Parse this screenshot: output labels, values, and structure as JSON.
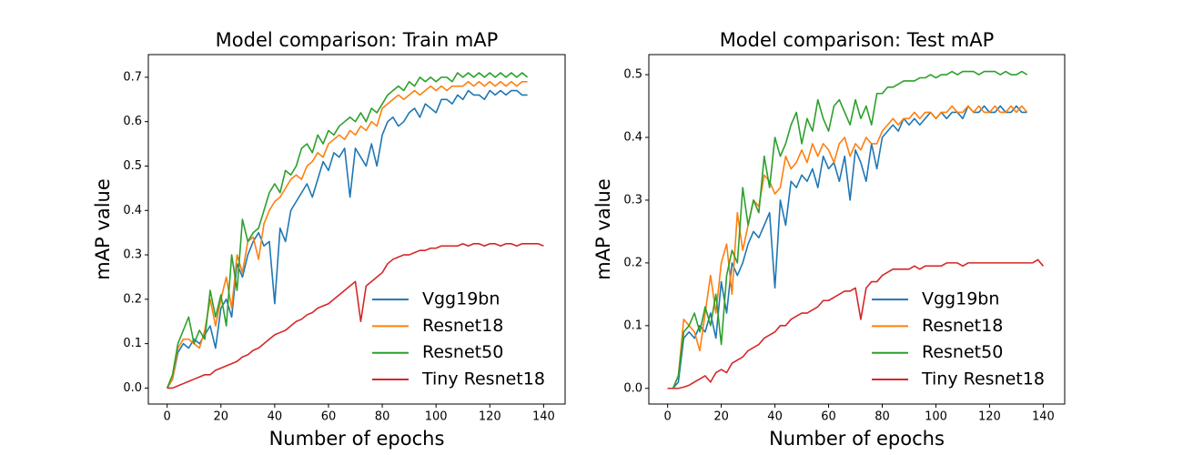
{
  "chart_data": [
    {
      "type": "line",
      "title": "Model comparison: Train mAP",
      "x_label": "Number of epochs",
      "y_label": "mAP value",
      "legend": "lower right",
      "x": [
        0,
        2,
        4,
        6,
        8,
        10,
        12,
        14,
        16,
        18,
        20,
        22,
        24,
        26,
        28,
        30,
        32,
        34,
        36,
        38,
        40,
        42,
        44,
        46,
        48,
        50,
        52,
        54,
        56,
        58,
        60,
        62,
        64,
        66,
        68,
        70,
        72,
        74,
        76,
        78,
        80,
        82,
        84,
        86,
        88,
        90,
        92,
        94,
        96,
        98,
        100,
        102,
        104,
        106,
        108,
        110,
        112,
        114,
        116,
        118,
        120,
        122,
        124,
        126,
        128,
        130,
        132,
        134,
        136,
        138,
        140
      ],
      "xlim": [
        -7,
        148
      ],
      "xticks": [
        0,
        20,
        40,
        60,
        80,
        100,
        120,
        140
      ],
      "ylim": [
        -0.036,
        0.751
      ],
      "yticks": [
        {
          "value": 0,
          "label": "0.0"
        },
        0.1,
        0.2,
        0.3,
        0.4,
        0.5,
        0.6,
        0.7
      ],
      "series": [
        {
          "name": "Vgg19bn",
          "color": "#1f77b4",
          "values": [
            0,
            0.02,
            0.08,
            0.1,
            0.09,
            0.11,
            0.1,
            0.12,
            0.14,
            0.09,
            0.18,
            0.2,
            0.16,
            0.28,
            0.25,
            0.3,
            0.33,
            0.35,
            0.32,
            0.33,
            0.19,
            0.36,
            0.33,
            0.4,
            0.42,
            0.44,
            0.46,
            0.43,
            0.47,
            0.51,
            0.49,
            0.53,
            0.52,
            0.54,
            0.43,
            0.54,
            0.52,
            0.5,
            0.55,
            0.5,
            0.57,
            0.6,
            0.61,
            0.59,
            0.6,
            0.62,
            0.63,
            0.61,
            0.64,
            0.63,
            0.62,
            0.65,
            0.65,
            0.64,
            0.66,
            0.65,
            0.67,
            0.66,
            0.66,
            0.65,
            0.67,
            0.66,
            0.67,
            0.66,
            0.67,
            0.67,
            0.66,
            0.66,
            null,
            null,
            null
          ]
        },
        {
          "name": "Resnet18",
          "color": "#ff7f0e",
          "values": [
            0,
            0.02,
            0.09,
            0.11,
            0.11,
            0.1,
            0.09,
            0.13,
            0.2,
            0.14,
            0.2,
            0.25,
            0.18,
            0.3,
            0.26,
            0.33,
            0.34,
            0.29,
            0.37,
            0.4,
            0.42,
            0.43,
            0.45,
            0.47,
            0.48,
            0.47,
            0.5,
            0.51,
            0.53,
            0.52,
            0.55,
            0.56,
            0.57,
            0.56,
            0.58,
            0.57,
            0.59,
            0.58,
            0.6,
            0.59,
            0.63,
            0.64,
            0.65,
            0.66,
            0.65,
            0.66,
            0.67,
            0.66,
            0.67,
            0.68,
            0.67,
            0.68,
            0.67,
            0.68,
            0.68,
            0.68,
            0.69,
            0.68,
            0.69,
            0.68,
            0.69,
            0.68,
            0.69,
            0.68,
            0.69,
            0.68,
            0.69,
            0.69,
            null,
            null,
            null
          ]
        },
        {
          "name": "Resnet50",
          "color": "#2ca02c",
          "values": [
            0,
            0.03,
            0.1,
            0.13,
            0.16,
            0.1,
            0.13,
            0.11,
            0.22,
            0.16,
            0.21,
            0.14,
            0.3,
            0.22,
            0.38,
            0.33,
            0.35,
            0.36,
            0.4,
            0.44,
            0.46,
            0.44,
            0.49,
            0.48,
            0.5,
            0.54,
            0.55,
            0.53,
            0.57,
            0.55,
            0.58,
            0.57,
            0.59,
            0.6,
            0.61,
            0.6,
            0.62,
            0.6,
            0.63,
            0.62,
            0.64,
            0.66,
            0.67,
            0.68,
            0.67,
            0.69,
            0.68,
            0.7,
            0.69,
            0.7,
            0.69,
            0.7,
            0.7,
            0.69,
            0.71,
            0.7,
            0.71,
            0.7,
            0.71,
            0.7,
            0.71,
            0.7,
            0.71,
            0.7,
            0.71,
            0.7,
            0.71,
            0.7,
            null,
            null,
            null
          ]
        },
        {
          "name": "Tiny Resnet18",
          "color": "#d62728",
          "values": [
            0,
            0,
            0.005,
            0.01,
            0.015,
            0.02,
            0.025,
            0.03,
            0.03,
            0.04,
            0.045,
            0.05,
            0.055,
            0.06,
            0.07,
            0.075,
            0.085,
            0.09,
            0.1,
            0.11,
            0.12,
            0.125,
            0.13,
            0.14,
            0.15,
            0.155,
            0.165,
            0.17,
            0.18,
            0.185,
            0.19,
            0.2,
            0.21,
            0.22,
            0.23,
            0.24,
            0.15,
            0.23,
            0.24,
            0.25,
            0.26,
            0.28,
            0.29,
            0.295,
            0.3,
            0.3,
            0.305,
            0.31,
            0.31,
            0.315,
            0.315,
            0.32,
            0.32,
            0.32,
            0.32,
            0.325,
            0.32,
            0.325,
            0.325,
            0.32,
            0.325,
            0.325,
            0.32,
            0.325,
            0.325,
            0.32,
            0.325,
            0.325,
            0.325,
            0.325,
            0.32
          ]
        }
      ]
    },
    {
      "type": "line",
      "title": "Model comparison: Test mAP",
      "x_label": "Number of epochs",
      "y_label": "mAP value",
      "legend": "lower right",
      "x": [
        0,
        2,
        4,
        6,
        8,
        10,
        12,
        14,
        16,
        18,
        20,
        22,
        24,
        26,
        28,
        30,
        32,
        34,
        36,
        38,
        40,
        42,
        44,
        46,
        48,
        50,
        52,
        54,
        56,
        58,
        60,
        62,
        64,
        66,
        68,
        70,
        72,
        74,
        76,
        78,
        80,
        82,
        84,
        86,
        88,
        90,
        92,
        94,
        96,
        98,
        100,
        102,
        104,
        106,
        108,
        110,
        112,
        114,
        116,
        118,
        120,
        122,
        124,
        126,
        128,
        130,
        132,
        134,
        136,
        138,
        140
      ],
      "xlim": [
        -7,
        148
      ],
      "xticks": [
        0,
        20,
        40,
        60,
        80,
        100,
        120,
        140
      ],
      "ylim": [
        -0.025,
        0.532
      ],
      "yticks": [
        {
          "value": 0,
          "label": "0.0"
        },
        0.1,
        0.2,
        0.3,
        0.4,
        0.5
      ],
      "series": [
        {
          "name": "Vgg19bn",
          "color": "#1f77b4",
          "values": [
            0,
            0,
            0.01,
            0.08,
            0.09,
            0.08,
            0.1,
            0.09,
            0.12,
            0.08,
            0.17,
            0.12,
            0.2,
            0.18,
            0.2,
            0.23,
            0.25,
            0.24,
            0.26,
            0.28,
            0.16,
            0.3,
            0.26,
            0.33,
            0.32,
            0.34,
            0.33,
            0.35,
            0.32,
            0.37,
            0.35,
            0.36,
            0.33,
            0.37,
            0.3,
            0.38,
            0.36,
            0.33,
            0.39,
            0.35,
            0.4,
            0.41,
            0.42,
            0.41,
            0.43,
            0.42,
            0.43,
            0.42,
            0.43,
            0.44,
            0.43,
            0.44,
            0.43,
            0.44,
            0.44,
            0.43,
            0.45,
            0.44,
            0.44,
            0.45,
            0.44,
            0.44,
            0.45,
            0.44,
            0.44,
            0.45,
            0.44,
            0.44,
            null,
            null,
            null
          ]
        },
        {
          "name": "Resnet18",
          "color": "#ff7f0e",
          "values": [
            0,
            0,
            0.02,
            0.11,
            0.1,
            0.09,
            0.06,
            0.12,
            0.18,
            0.12,
            0.2,
            0.23,
            0.15,
            0.28,
            0.22,
            0.26,
            0.3,
            0.29,
            0.34,
            0.33,
            0.31,
            0.32,
            0.37,
            0.35,
            0.36,
            0.38,
            0.36,
            0.39,
            0.37,
            0.39,
            0.38,
            0.36,
            0.39,
            0.4,
            0.37,
            0.39,
            0.38,
            0.4,
            0.39,
            0.39,
            0.41,
            0.42,
            0.43,
            0.42,
            0.43,
            0.43,
            0.44,
            0.43,
            0.44,
            0.44,
            0.43,
            0.44,
            0.44,
            0.45,
            0.44,
            0.44,
            0.45,
            0.44,
            0.45,
            0.44,
            0.44,
            0.45,
            0.44,
            0.44,
            0.45,
            0.44,
            0.45,
            0.44,
            null,
            null,
            null
          ]
        },
        {
          "name": "Resnet50",
          "color": "#2ca02c",
          "values": [
            0,
            0,
            0.02,
            0.09,
            0.1,
            0.12,
            0.09,
            0.13,
            0.1,
            0.15,
            0.07,
            0.18,
            0.22,
            0.2,
            0.32,
            0.26,
            0.3,
            0.28,
            0.37,
            0.32,
            0.4,
            0.37,
            0.39,
            0.42,
            0.44,
            0.39,
            0.43,
            0.41,
            0.46,
            0.43,
            0.41,
            0.45,
            0.46,
            0.44,
            0.42,
            0.46,
            0.43,
            0.45,
            0.42,
            0.47,
            0.47,
            0.48,
            0.48,
            0.485,
            0.49,
            0.49,
            0.49,
            0.495,
            0.495,
            0.5,
            0.495,
            0.5,
            0.5,
            0.505,
            0.5,
            0.505,
            0.505,
            0.505,
            0.5,
            0.505,
            0.505,
            0.505,
            0.5,
            0.505,
            0.5,
            0.5,
            0.505,
            0.5,
            null,
            null,
            null
          ]
        },
        {
          "name": "Tiny Resnet18",
          "color": "#d62728",
          "values": [
            0,
            0,
            0,
            0.002,
            0.005,
            0.01,
            0.015,
            0.02,
            0.01,
            0.025,
            0.03,
            0.025,
            0.04,
            0.045,
            0.05,
            0.06,
            0.065,
            0.07,
            0.08,
            0.085,
            0.09,
            0.1,
            0.1,
            0.11,
            0.115,
            0.12,
            0.12,
            0.125,
            0.13,
            0.14,
            0.14,
            0.145,
            0.15,
            0.155,
            0.155,
            0.16,
            0.11,
            0.16,
            0.17,
            0.17,
            0.18,
            0.185,
            0.19,
            0.19,
            0.19,
            0.19,
            0.195,
            0.19,
            0.195,
            0.195,
            0.195,
            0.195,
            0.2,
            0.2,
            0.2,
            0.195,
            0.2,
            0.2,
            0.2,
            0.2,
            0.2,
            0.2,
            0.2,
            0.2,
            0.2,
            0.2,
            0.2,
            0.2,
            0.2,
            0.205,
            0.195
          ]
        }
      ]
    }
  ]
}
